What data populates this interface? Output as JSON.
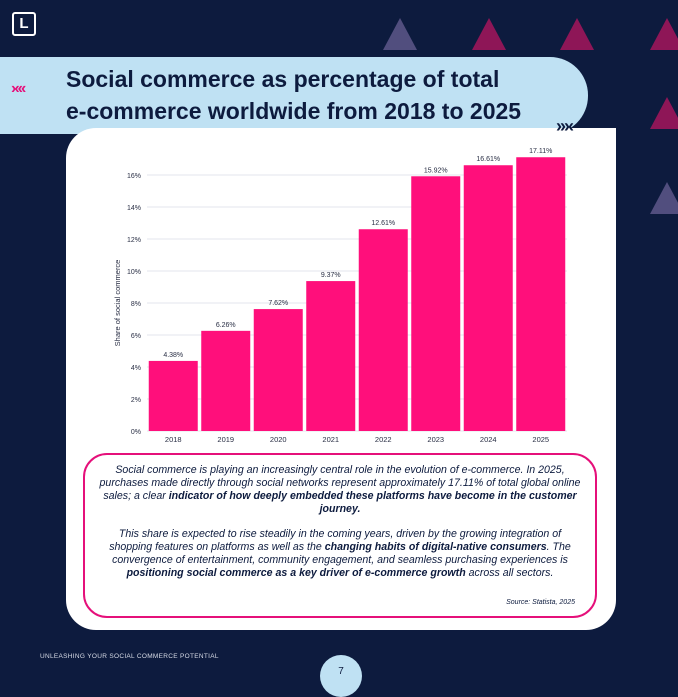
{
  "logo": {
    "letter": "L"
  },
  "header": {
    "title_line1": "Social commerce as percentage of total",
    "title_line2": "e-commerce worldwide from 2018 to 2025",
    "arrows_left": "›‹‹‹",
    "arrows_right": "›››‹"
  },
  "colors": {
    "background": "#0d1b3e",
    "accent_pink": "#e5107a",
    "bar_pink": "#ff0f7b",
    "light_blue": "#bfe1f3",
    "triangle_purple": "#514e7e",
    "triangle_magenta": "#8e1657"
  },
  "chart_data": {
    "type": "bar",
    "categories": [
      "2018",
      "2019",
      "2020",
      "2021",
      "2022",
      "2023",
      "2024",
      "2025"
    ],
    "values": [
      4.38,
      6.26,
      7.62,
      9.37,
      12.61,
      15.92,
      16.61,
      17.11
    ],
    "data_labels": [
      "4.38%",
      "6.26%",
      "7.62%",
      "9.37%",
      "12.61%",
      "15.92%",
      "16.61%",
      "17.11%"
    ],
    "ylabel": "Share of social commerce",
    "xlabel": "",
    "ylim": [
      0,
      16
    ],
    "yticks": [
      "0%",
      "2%",
      "4%",
      "6%",
      "8%",
      "10%",
      "12%",
      "14%",
      "16%"
    ],
    "grid": true
  },
  "description": {
    "p1": [
      {
        "text": "Social commerce is playing an increasingly central role in the evolution of e-commerce. In 2025, purchases made directly through social networks represent approximately 17.11% of total global online sales; a clear ",
        "bold": false
      },
      {
        "text": "indicator of how deeply embedded these platforms have become in the customer journey.",
        "bold": true
      }
    ],
    "p2": [
      {
        "text": "This share is expected to rise steadily in the coming years, driven by the growing integration of shopping features on platforms as well as the ",
        "bold": false
      },
      {
        "text": "changing habits of digital-native consumers",
        "bold": true
      },
      {
        "text": ". The convergence of entertainment, community engagement, and seamless purchasing experiences is ",
        "bold": false
      },
      {
        "text": "positioning social commerce as a key driver of e-commerce growth",
        "bold": true
      },
      {
        "text": " across all sectors.",
        "bold": false
      }
    ],
    "source": "Source: Statista, 2025"
  },
  "footer": {
    "text": "UNLEASHING YOUR SOCIAL COMMERCE POTENTIAL",
    "page": "7"
  }
}
